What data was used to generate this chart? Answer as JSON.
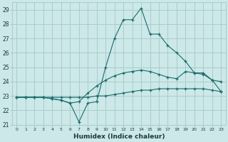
{
  "x": [
    0,
    1,
    2,
    3,
    4,
    5,
    6,
    7,
    8,
    9,
    10,
    11,
    12,
    13,
    14,
    15,
    16,
    17,
    18,
    19,
    20,
    21,
    22,
    23
  ],
  "line1": [
    22.9,
    22.9,
    22.9,
    22.9,
    22.8,
    22.7,
    22.5,
    21.2,
    22.5,
    22.6,
    25.0,
    27.0,
    28.3,
    28.3,
    29.1,
    27.3,
    27.3,
    26.5,
    26.0,
    25.4,
    24.6,
    24.6,
    24.1,
    24.0
  ],
  "line2": [
    22.9,
    22.9,
    22.9,
    22.9,
    22.8,
    22.7,
    22.5,
    22.6,
    23.2,
    23.7,
    24.1,
    24.4,
    24.6,
    24.7,
    24.8,
    24.7,
    24.5,
    24.3,
    24.2,
    24.7,
    24.6,
    24.5,
    24.1,
    23.3
  ],
  "line3": [
    22.9,
    22.9,
    22.9,
    22.9,
    22.9,
    22.9,
    22.9,
    22.9,
    22.9,
    23.0,
    23.0,
    23.1,
    23.2,
    23.3,
    23.4,
    23.4,
    23.5,
    23.5,
    23.5,
    23.5,
    23.5,
    23.5,
    23.4,
    23.3
  ],
  "bg_color": "#cce8e8",
  "grid_color": "#aacccc",
  "line_color": "#1a6b6b",
  "xlabel": "Humidex (Indice chaleur)",
  "ylim": [
    21,
    29.5
  ],
  "xlim": [
    -0.5,
    23.5
  ],
  "yticks": [
    21,
    22,
    23,
    24,
    25,
    26,
    27,
    28,
    29
  ],
  "xticks": [
    0,
    1,
    2,
    3,
    4,
    5,
    6,
    7,
    8,
    9,
    10,
    11,
    12,
    13,
    14,
    15,
    16,
    17,
    18,
    19,
    20,
    21,
    22,
    23
  ],
  "xtick_labels": [
    "0",
    "1",
    "2",
    "3",
    "4",
    "5",
    "6",
    "7",
    "8",
    "9",
    "10",
    "11",
    "12",
    "13",
    "14",
    "15",
    "16",
    "17",
    "18",
    "19",
    "20",
    "21",
    "22",
    "23"
  ]
}
